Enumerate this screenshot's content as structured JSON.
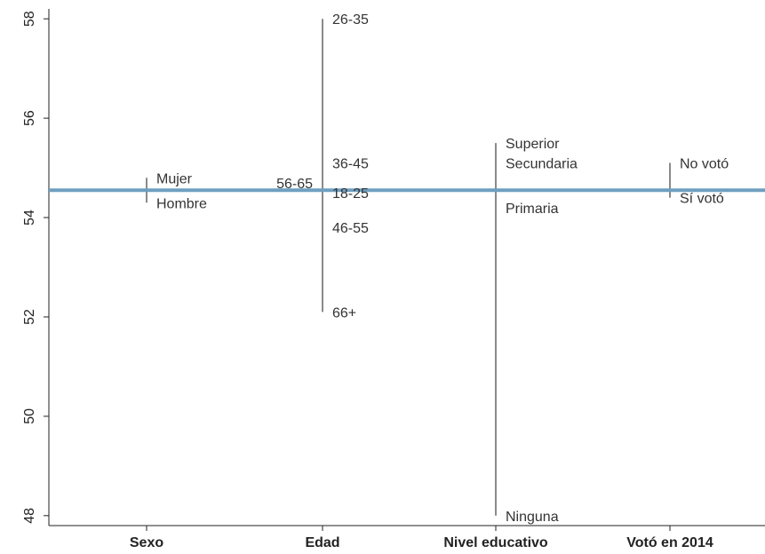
{
  "chart_data": {
    "type": "range",
    "title": "",
    "xlabel": "",
    "ylabel": "",
    "ylim": [
      47.8,
      58.2
    ],
    "yticks": [
      "48",
      "50",
      "52",
      "54",
      "56",
      "58"
    ],
    "reference_line": {
      "value": 54.55,
      "color": "#6f9fc0"
    },
    "range_color": "#8a8a8a",
    "groups": [
      {
        "name": "Sexo",
        "points": [
          {
            "label": "Mujer",
            "value": 54.8,
            "side": "right"
          },
          {
            "label": "Hombre",
            "value": 54.3,
            "side": "right"
          }
        ]
      },
      {
        "name": "Edad",
        "points": [
          {
            "label": "26-35",
            "value": 58.0,
            "side": "right"
          },
          {
            "label": "36-45",
            "value": 55.1,
            "side": "right"
          },
          {
            "label": "56-65",
            "value": 54.7,
            "side": "left"
          },
          {
            "label": "18-25",
            "value": 54.5,
            "side": "right"
          },
          {
            "label": "46-55",
            "value": 53.8,
            "side": "right"
          },
          {
            "label": "66+",
            "value": 52.1,
            "side": "right"
          }
        ]
      },
      {
        "name": "Nivel educativo",
        "points": [
          {
            "label": "Superior",
            "value": 55.5,
            "side": "right"
          },
          {
            "label": "Secundaria",
            "value": 55.1,
            "side": "right"
          },
          {
            "label": "Primaria",
            "value": 54.2,
            "side": "right"
          },
          {
            "label": "Ninguna",
            "value": 48.0,
            "side": "right"
          }
        ]
      },
      {
        "name": "Votó en 2014",
        "points": [
          {
            "label": "No votó",
            "value": 55.1,
            "side": "right"
          },
          {
            "label": "Sí votó",
            "value": 54.4,
            "side": "right"
          }
        ]
      }
    ]
  }
}
